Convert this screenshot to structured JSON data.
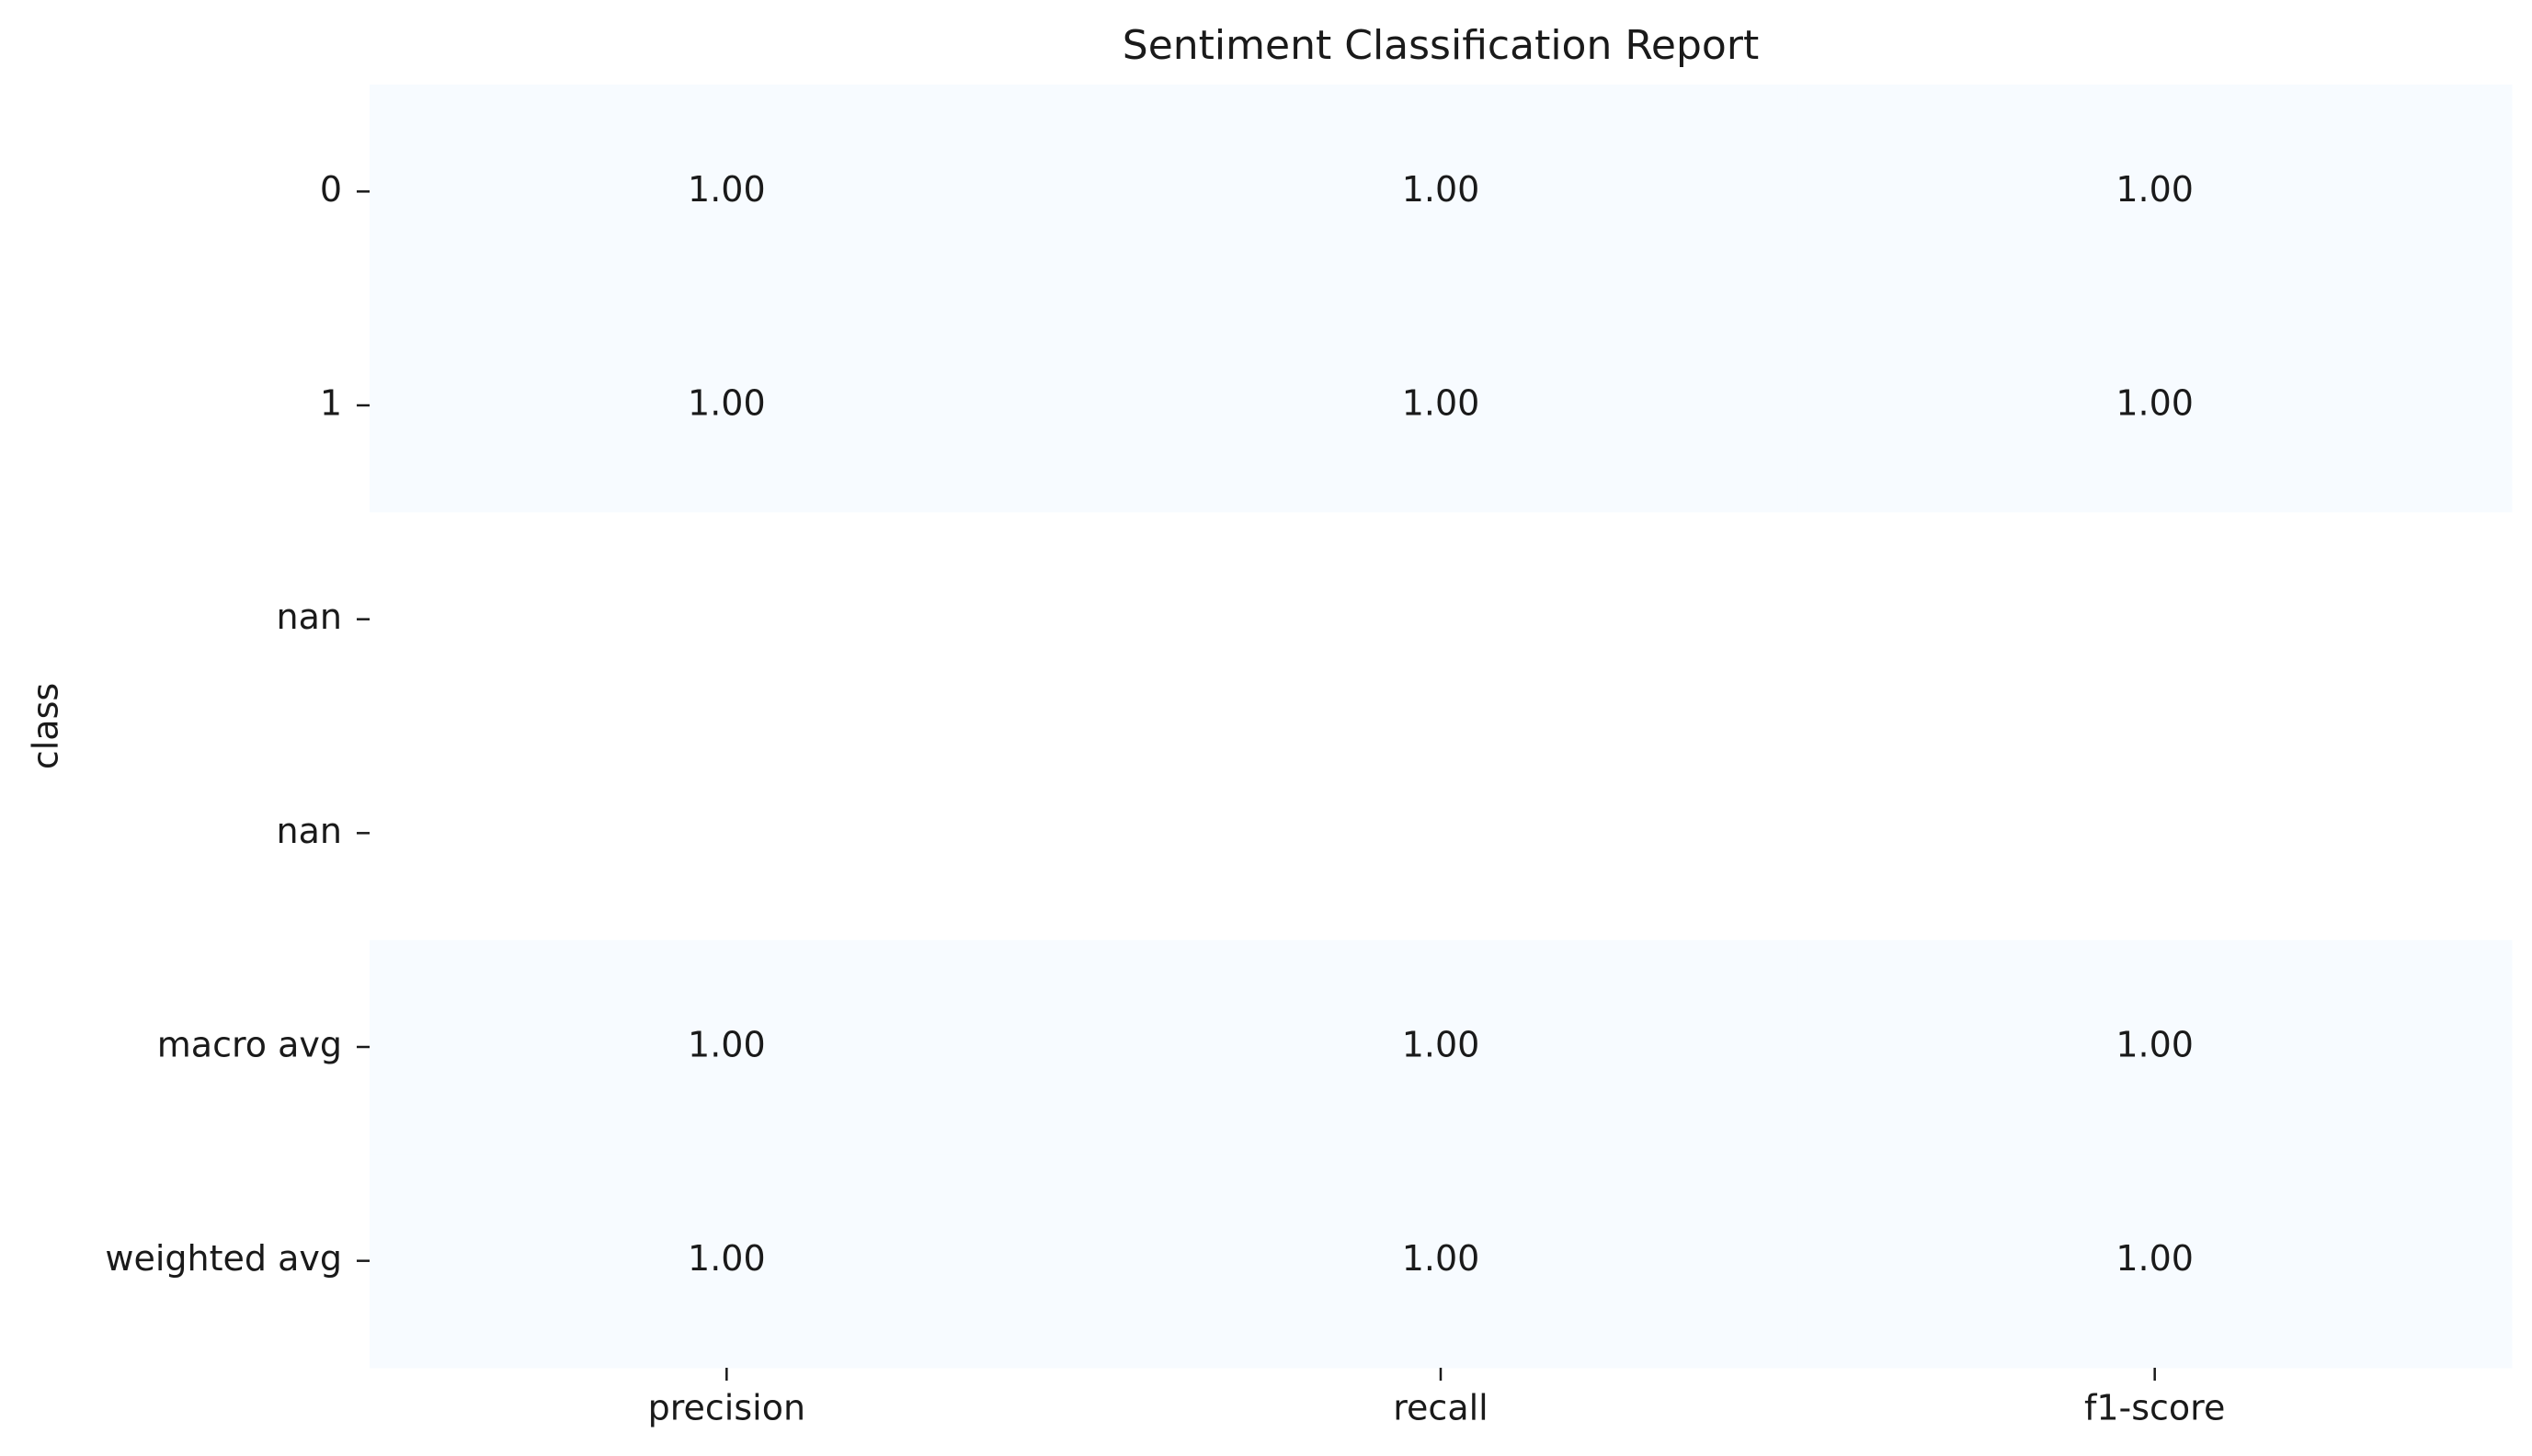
{
  "chart_data": {
    "type": "heatmap",
    "title": "Sentiment Classification Report",
    "xlabel": "",
    "ylabel": "class",
    "columns": [
      "precision",
      "recall",
      "f1-score"
    ],
    "rows": [
      "0",
      "1",
      "nan",
      "nan",
      "macro avg",
      "weighted avg"
    ],
    "values": [
      [
        1.0,
        1.0,
        1.0
      ],
      [
        1.0,
        1.0,
        1.0
      ],
      [
        null,
        null,
        null
      ],
      [
        null,
        null,
        null
      ],
      [
        1.0,
        1.0,
        1.0
      ],
      [
        1.0,
        1.0,
        1.0
      ]
    ],
    "cell_labels": [
      [
        "1.00",
        "1.00",
        "1.00"
      ],
      [
        "1.00",
        "1.00",
        "1.00"
      ],
      [
        "",
        "",
        ""
      ],
      [
        "",
        "",
        ""
      ],
      [
        "1.00",
        "1.00",
        "1.00"
      ],
      [
        "1.00",
        "1.00",
        "1.00"
      ]
    ],
    "colormap_low": "#f7fbff",
    "colormap_high": "#08306b",
    "missing_color": "#ffffff",
    "colorbar": false,
    "grid": false
  }
}
